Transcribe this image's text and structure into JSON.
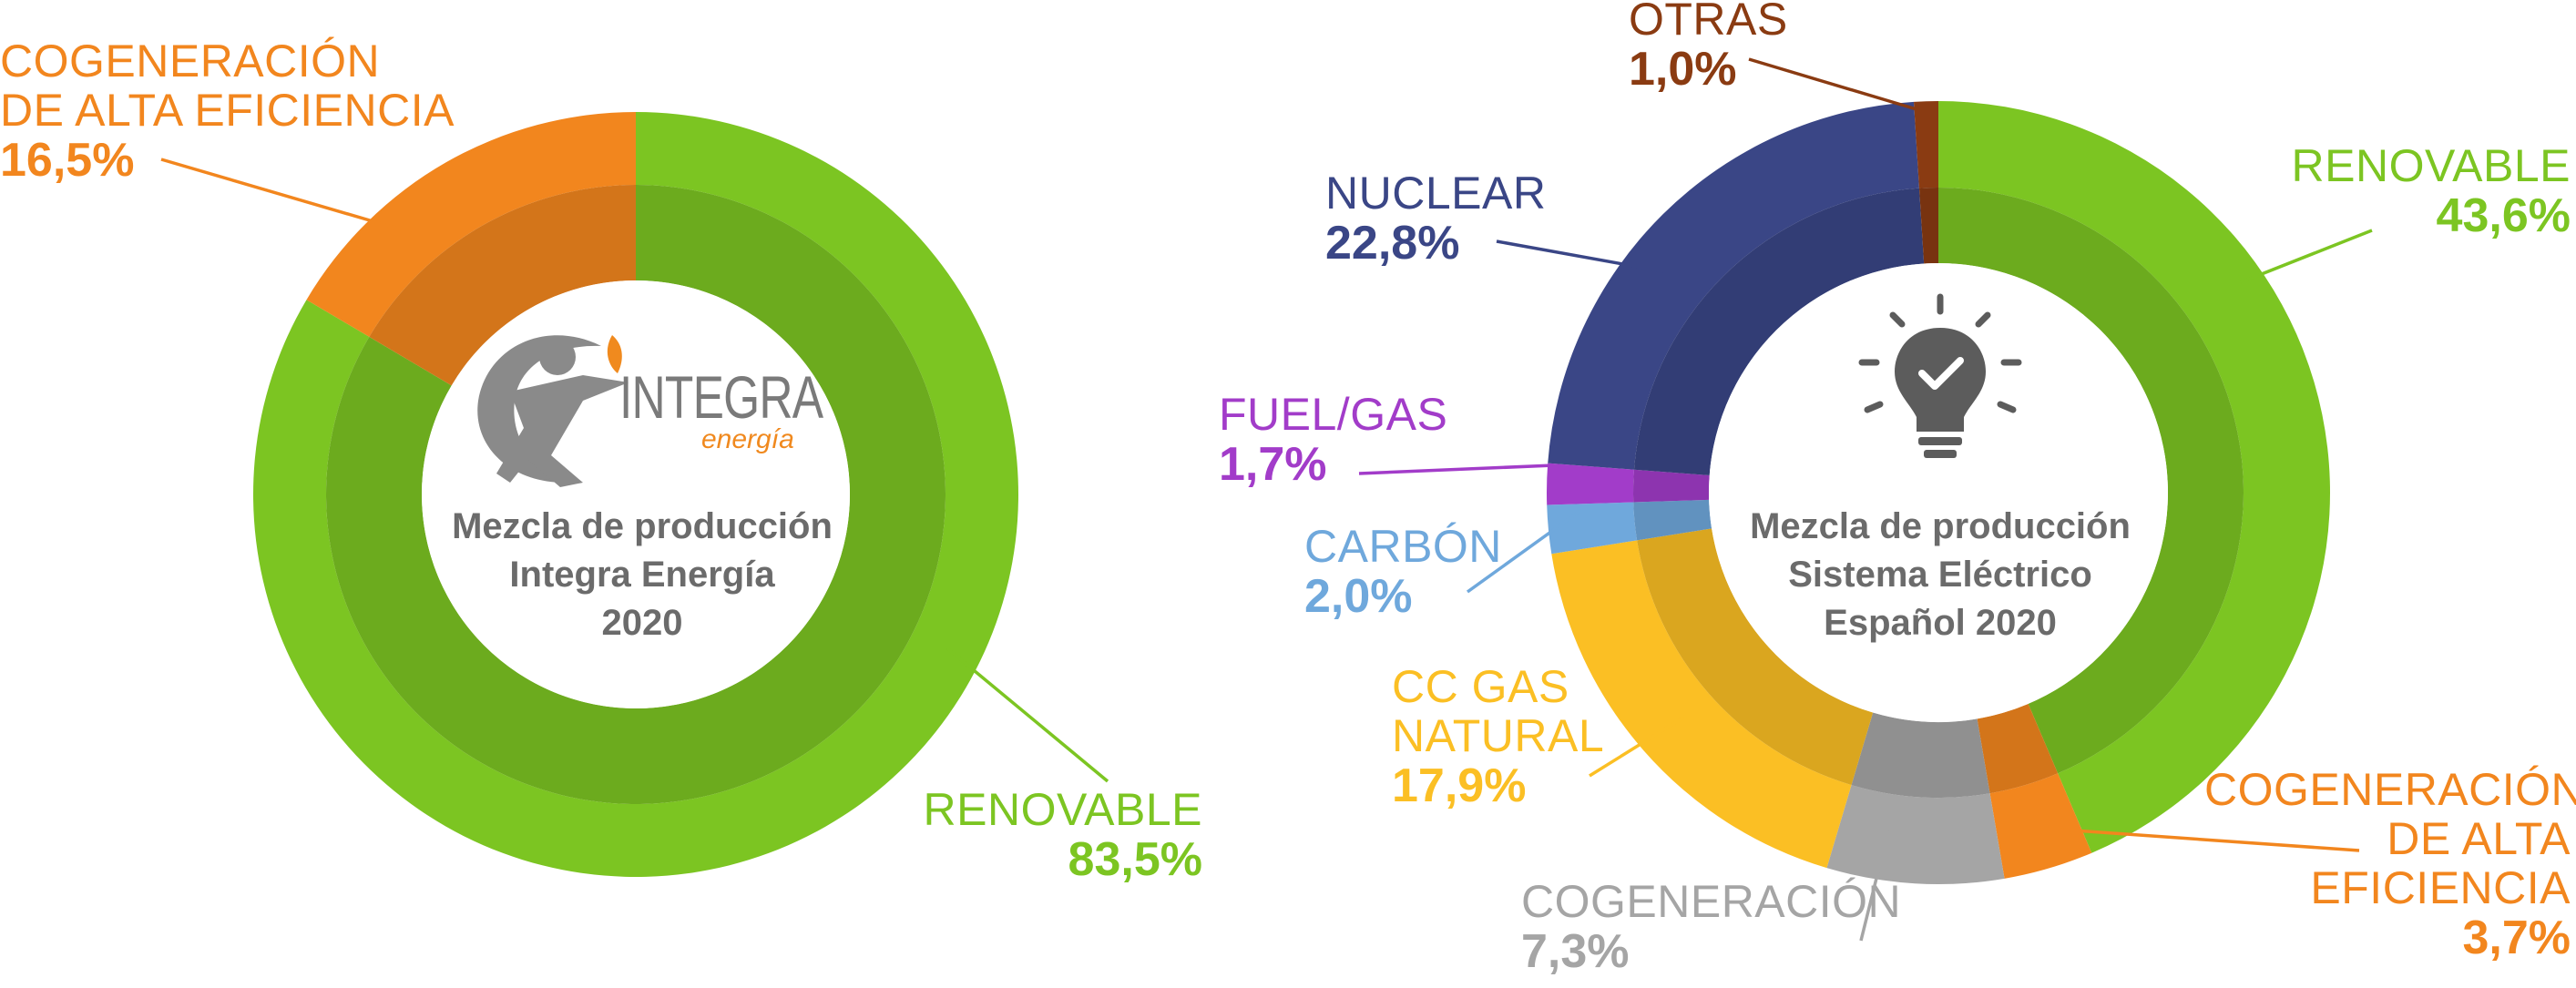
{
  "colors": {
    "renovable": "#7cc522",
    "cogeneracion_alta": "#f2861e",
    "nuclear": "#3a4686",
    "fuel_gas": "#a23cc9",
    "carbon": "#6fa8dc",
    "cc_gas": "#fbbf24",
    "cogeneracion": "#a5a5a5",
    "otras": "#8a3b12",
    "title": "#6b6b6b"
  },
  "logo": {
    "word": "INTEGRA",
    "sub": "energía"
  },
  "chart_data": [
    {
      "type": "pie",
      "style": "donut",
      "title_lines": [
        "Mezcla de producción",
        "Integra Energía",
        "2020"
      ],
      "slices": [
        {
          "key": "renovable",
          "name": "RENOVABLE",
          "value": 83.5,
          "label": "83,5%"
        },
        {
          "key": "cogeneracion_alta",
          "name": "COGENERACIÓN DE ALTA EFICIENCIA",
          "name_lines": [
            "COGENERACIÓN",
            "DE ALTA EFICIENCIA"
          ],
          "value": 16.5,
          "label": "16,5%"
        }
      ]
    },
    {
      "type": "pie",
      "style": "donut",
      "title_lines": [
        "Mezcla de producción",
        "Sistema Eléctrico",
        "Español 2020"
      ],
      "slices": [
        {
          "key": "renovable",
          "name": "RENOVABLE",
          "value": 43.6,
          "label": "43,6%"
        },
        {
          "key": "cogeneracion_alta",
          "name": "COGENERACIÓN DE ALTA EFICIENCIA",
          "name_lines": [
            "COGENERACIÓN",
            "DE ALTA",
            "EFICIENCIA"
          ],
          "value": 3.7,
          "label": "3,7%"
        },
        {
          "key": "cogeneracion",
          "name": "COGENERACIÓN",
          "value": 7.3,
          "label": "7,3%"
        },
        {
          "key": "cc_gas",
          "name": "CC GAS NATURAL",
          "name_lines": [
            "CC GAS",
            "NATURAL"
          ],
          "value": 17.9,
          "label": "17,9%"
        },
        {
          "key": "carbon",
          "name": "CARBÓN",
          "value": 2.0,
          "label": "2,0%"
        },
        {
          "key": "fuel_gas",
          "name": "FUEL/GAS",
          "value": 1.7,
          "label": "1,7%"
        },
        {
          "key": "nuclear",
          "name": "NUCLEAR",
          "value": 22.8,
          "label": "22,8%"
        },
        {
          "key": "otras",
          "name": "OTRAS",
          "value": 1.0,
          "label": "1,0%"
        }
      ]
    }
  ]
}
